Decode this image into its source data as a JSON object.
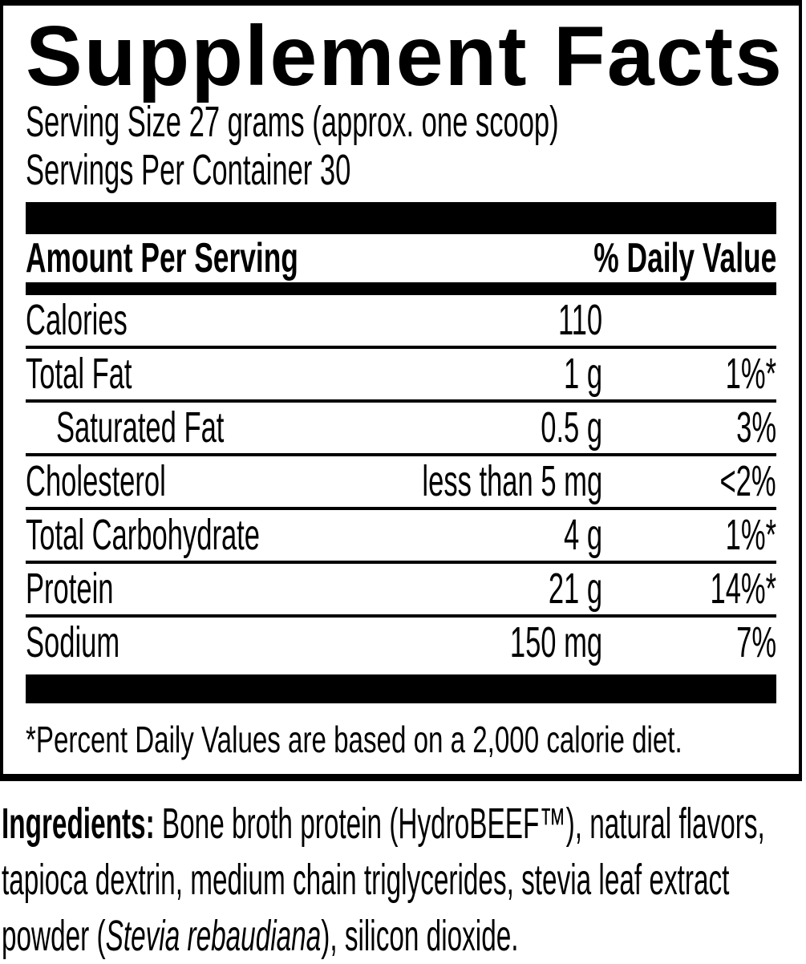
{
  "panel": {
    "title": "Supplement Facts",
    "serving_size": "Serving Size 27 grams (approx. one scoop)",
    "servings_per_container": "Servings Per Container 30",
    "header": {
      "amount_per_serving": "Amount Per Serving",
      "daily_value": "% Daily Value"
    },
    "rows": [
      {
        "label": "Calories",
        "amount": "110",
        "dv": "",
        "indent": false
      },
      {
        "label": "Total Fat",
        "amount": "1 g",
        "dv": "1%*",
        "indent": false
      },
      {
        "label": "Saturated Fat",
        "amount": "0.5 g",
        "dv": "3%",
        "indent": true
      },
      {
        "label": "Cholesterol",
        "amount": "less than 5 mg",
        "dv": "<2%",
        "indent": false
      },
      {
        "label": "Total Carbohydrate",
        "amount": "4 g",
        "dv": "1%*",
        "indent": false
      },
      {
        "label": "Protein",
        "amount": "21 g",
        "dv": "14%*",
        "indent": false
      },
      {
        "label": "Sodium",
        "amount": "150 mg",
        "dv": "7%",
        "indent": false
      }
    ],
    "footnote": "*Percent Daily Values are based on a 2,000 calorie diet."
  },
  "ingredients": {
    "label": "Ingredients:",
    "text_before_italic": " Bone broth protein (HydroBEEF™), natural flavors, tapioca dextrin, medium chain triglycerides, stevia leaf extract powder (",
    "italic": "Stevia rebaudiana",
    "text_after_italic": "), silicon dioxide."
  },
  "colors": {
    "text": "#000000",
    "background": "#ffffff"
  }
}
